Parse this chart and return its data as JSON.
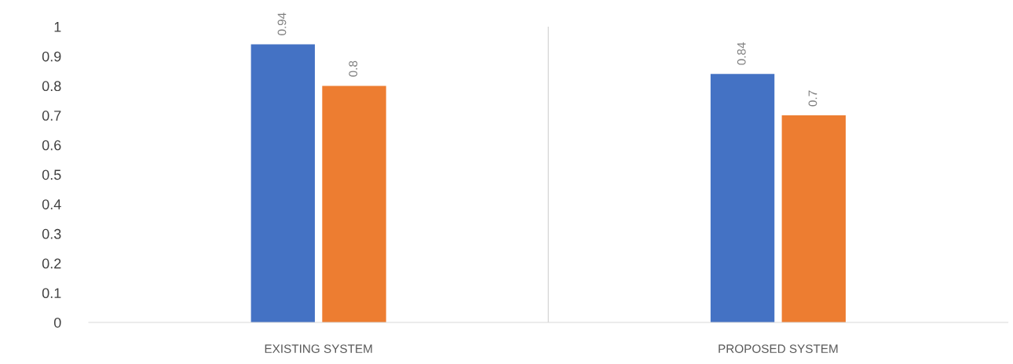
{
  "chart_data": {
    "type": "bar",
    "categories": [
      "EXISTING SYSTEM",
      "PROPOSED SYSTEM"
    ],
    "series": [
      {
        "color": "#4472c4",
        "values": [
          0.94,
          0.84
        ]
      },
      {
        "color": "#ed7d31",
        "values": [
          0.8,
          0.7
        ]
      }
    ],
    "ylim": [
      0,
      1
    ],
    "yticks": [
      0,
      0.1,
      0.2,
      0.3,
      0.4,
      0.5,
      0.6,
      0.7,
      0.8,
      0.9,
      1
    ],
    "data_labels": true,
    "grid": false,
    "legend": false
  }
}
